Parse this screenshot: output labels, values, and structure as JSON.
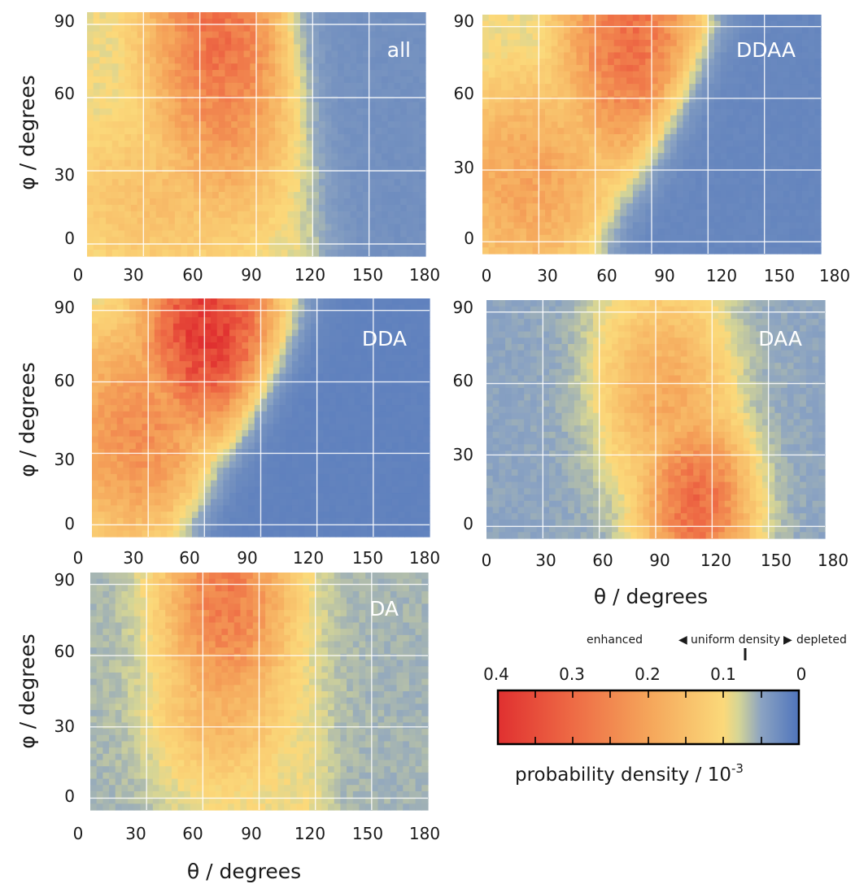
{
  "chart_data": [
    {
      "type": "heatmap",
      "panel_label": "all",
      "xlabel": "",
      "ylabel": "φ / degrees",
      "xlim": [
        0,
        180
      ],
      "ylim": [
        -5,
        95
      ],
      "xticks": [
        "0",
        "30",
        "60",
        "90",
        "120",
        "150",
        "180"
      ],
      "yticks": [
        "0",
        "30",
        "60",
        "90"
      ],
      "hotspots": [
        {
          "theta": 72,
          "phi": 90,
          "density": 0.29,
          "sigma_theta": 30,
          "sigma_phi": 55
        },
        {
          "theta": 40,
          "phi": 20,
          "density": 0.15,
          "sigma_theta": 45,
          "sigma_phi": 30
        }
      ],
      "background_density": 0.06,
      "boundary": {
        "theta_at_phi0": 128,
        "theta_at_phi90": 108
      }
    },
    {
      "type": "heatmap",
      "panel_label": "DDAA",
      "xlabel": "",
      "ylabel": "",
      "xlim": [
        0,
        180
      ],
      "ylim": [
        -5,
        95
      ],
      "xticks": [
        "0",
        "30",
        "60",
        "90",
        "120",
        "150",
        "180"
      ],
      "yticks": [
        "0",
        "30",
        "60",
        "90"
      ],
      "hotspots": [
        {
          "theta": 80,
          "phi": 85,
          "density": 0.29,
          "sigma_theta": 30,
          "sigma_phi": 45
        },
        {
          "theta": 25,
          "phi": 25,
          "density": 0.2,
          "sigma_theta": 40,
          "sigma_phi": 40
        }
      ],
      "background_density": 0.04,
      "boundary": {
        "theta_at_phi0": 65,
        "theta_at_phi90": 122
      }
    },
    {
      "type": "heatmap",
      "panel_label": "DDA",
      "xlabel": "",
      "ylabel": "φ / degrees",
      "xlim": [
        0,
        180
      ],
      "ylim": [
        -5,
        95
      ],
      "xticks": [
        "0",
        "30",
        "60",
        "90",
        "120",
        "150",
        "180"
      ],
      "yticks": [
        "0",
        "30",
        "60",
        "90"
      ],
      "hotspots": [
        {
          "theta": 62,
          "phi": 82,
          "density": 0.39,
          "sigma_theta": 28,
          "sigma_phi": 35
        },
        {
          "theta": 25,
          "phi": 40,
          "density": 0.24,
          "sigma_theta": 35,
          "sigma_phi": 40
        }
      ],
      "background_density": 0.03,
      "boundary": {
        "theta_at_phi0": 52,
        "theta_at_phi90": 112
      }
    },
    {
      "type": "heatmap",
      "panel_label": "DAA",
      "xlabel": "θ / degrees",
      "ylabel": "",
      "xlim": [
        0,
        180
      ],
      "ylim": [
        -5,
        95
      ],
      "xticks": [
        "0",
        "30",
        "60",
        "90",
        "120",
        "150",
        "180"
      ],
      "yticks": [
        "0",
        "30",
        "60",
        "90"
      ],
      "hotspots": [
        {
          "theta": 112,
          "phi": 10,
          "density": 0.3,
          "sigma_theta": 22,
          "sigma_phi": 28
        },
        {
          "theta": 95,
          "phi": 55,
          "density": 0.19,
          "sigma_theta": 28,
          "sigma_phi": 35
        }
      ],
      "background_density": 0.05,
      "band": {
        "center_at_phi0": 108,
        "center_at_phi90": 90,
        "half_width": 42
      }
    },
    {
      "type": "heatmap",
      "panel_label": "DA",
      "xlabel": "θ / degrees",
      "ylabel": "φ / degrees",
      "xlim": [
        0,
        180
      ],
      "ylim": [
        -5,
        95
      ],
      "xticks": [
        "0",
        "30",
        "60",
        "90",
        "120",
        "150",
        "180"
      ],
      "yticks": [
        "0",
        "30",
        "60",
        "90"
      ],
      "hotspots": [
        {
          "theta": 72,
          "phi": 85,
          "density": 0.27,
          "sigma_theta": 25,
          "sigma_phi": 40
        },
        {
          "theta": 70,
          "phi": 45,
          "density": 0.18,
          "sigma_theta": 28,
          "sigma_phi": 30
        }
      ],
      "background_density": 0.06,
      "band": {
        "center_at_phi0": 85,
        "center_at_phi90": 80,
        "half_width": 55
      }
    }
  ],
  "colorbar": {
    "title": "probability density / 10",
    "title_superscript": "-3",
    "ticks": [
      "0.4",
      "0.3",
      "0.2",
      "0.1",
      "0"
    ],
    "tick_values": [
      0.4,
      0.3,
      0.2,
      0.1,
      0
    ],
    "uniform_density_value": 0.1,
    "annotation": {
      "enhanced": "enhanced",
      "uniform": "uniform density",
      "depleted": "depleted"
    },
    "colors": [
      "#e03030",
      "#ee6b45",
      "#f5a55a",
      "#fbd97a",
      "#d5d596",
      "#8ba3c2",
      "#4f74bc"
    ],
    "color_stops": [
      0.4,
      0.3,
      0.2,
      0.1,
      0.08,
      0.05,
      0
    ]
  }
}
